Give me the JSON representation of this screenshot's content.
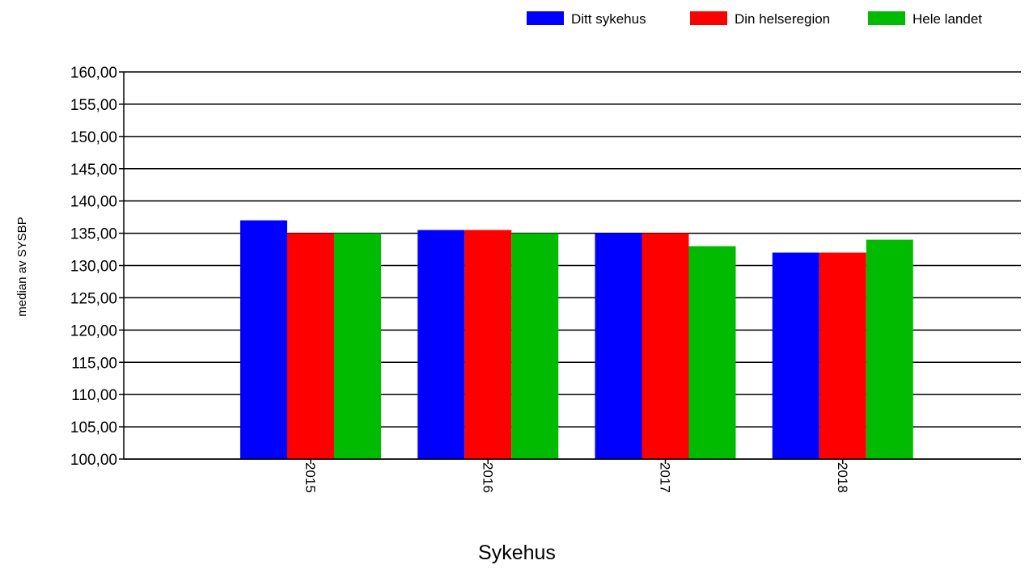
{
  "chart_data": {
    "type": "bar",
    "title": "",
    "xlabel": "Sykehus",
    "ylabel": "median av SYSBP",
    "categories": [
      "2015",
      "2016",
      "2017",
      "2018"
    ],
    "series": [
      {
        "name": "Ditt sykehus",
        "color": "#0000ff",
        "values": [
          137,
          135.5,
          135,
          132
        ]
      },
      {
        "name": "Din helseregion",
        "color": "#ff0000",
        "values": [
          135,
          135.5,
          135,
          132
        ]
      },
      {
        "name": "Hele landet",
        "color": "#00bb00",
        "values": [
          135,
          135,
          133,
          134
        ]
      }
    ],
    "ylim": [
      100,
      160
    ],
    "yticks": [
      "100,00",
      "105,00",
      "110,00",
      "115,00",
      "120,00",
      "125,00",
      "130,00",
      "135,00",
      "140,00",
      "145,00",
      "150,00",
      "155,00",
      "160,00"
    ],
    "grid": "horizontal",
    "legend_position": "top-right"
  }
}
